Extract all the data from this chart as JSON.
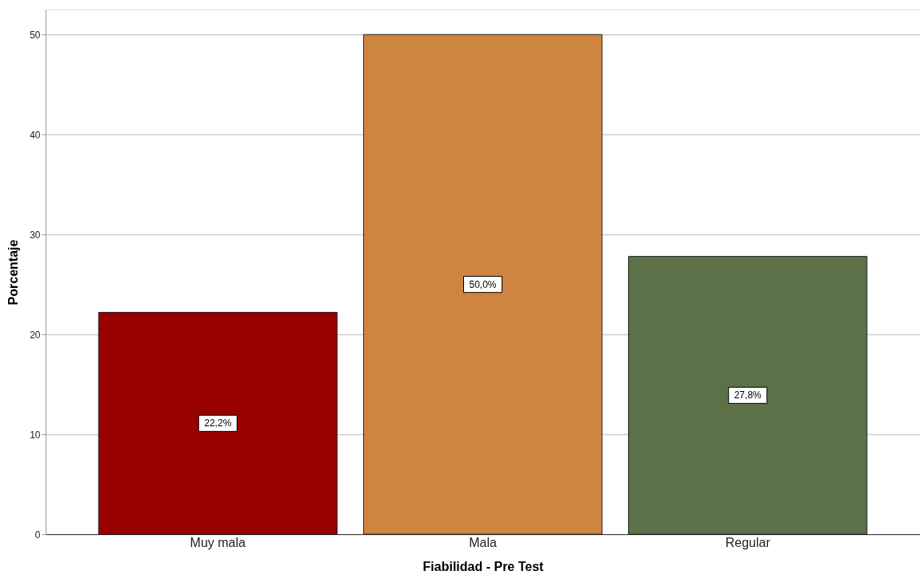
{
  "chart_data": {
    "type": "bar",
    "xlabel": "Fiabilidad - Pre Test",
    "ylabel": "Porcentaje",
    "categories": [
      "Muy mala",
      "Mala",
      "Regular"
    ],
    "values": [
      22.2,
      50.0,
      27.8
    ],
    "colors": [
      "#990000",
      "#cd853f",
      "#5c7148"
    ],
    "value_labels": [
      "22,2%",
      "50,0%",
      "27,8%"
    ],
    "ylim": [
      0,
      52.5
    ],
    "yticks": [
      0,
      10,
      20,
      30,
      40,
      50
    ],
    "grid": "y"
  }
}
